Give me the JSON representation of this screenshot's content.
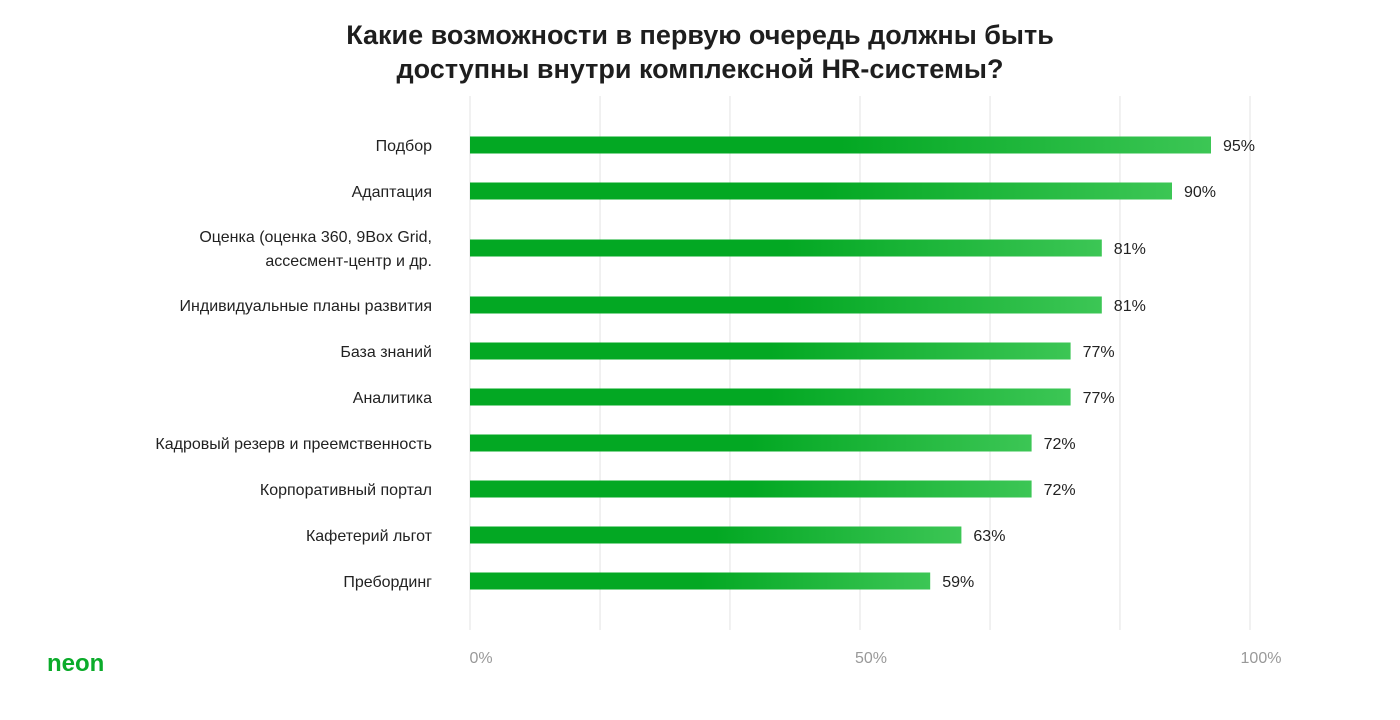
{
  "chart_data": {
    "type": "bar",
    "orientation": "horizontal",
    "title": "Какие возможности в первую очередь должны быть доступны внутри комплексной HR-системы?",
    "title_lines": [
      "Какие возможности в первую очередь должны быть",
      "доступны внутри комплексной HR-системы?"
    ],
    "categories": [
      [
        "Подбор"
      ],
      [
        "Адаптация"
      ],
      [
        "Оценка (оценка 360, 9Box Grid,",
        "ассесмент-центр и др."
      ],
      [
        "Индивидуальные планы развития"
      ],
      [
        "База знаний"
      ],
      [
        "Аналитика"
      ],
      [
        "Кадровый резерв и преемственность"
      ],
      [
        "Корпоративный портал"
      ],
      [
        "Кафетерий льгот"
      ],
      [
        "Пребординг"
      ]
    ],
    "values": [
      95,
      90,
      81,
      81,
      77,
      77,
      72,
      72,
      63,
      59
    ],
    "value_labels": [
      "95%",
      "90%",
      "81%",
      "81%",
      "77%",
      "77%",
      "72%",
      "72%",
      "63%",
      "59%"
    ],
    "xlim": [
      0,
      100
    ],
    "xticks": [
      {
        "value": 0,
        "label": "0%"
      },
      {
        "value": 50,
        "label": "50%"
      },
      {
        "value": 100,
        "label": "100%"
      }
    ],
    "gridlines": [
      0,
      16.67,
      33.33,
      50,
      66.67,
      83.33,
      100
    ],
    "grid": true,
    "bar_color_start": "#03a823",
    "bar_color_end": "#3cc655",
    "xlabel": "",
    "ylabel": ""
  },
  "logo": {
    "text": "neon",
    "color": "#0bab2a"
  }
}
